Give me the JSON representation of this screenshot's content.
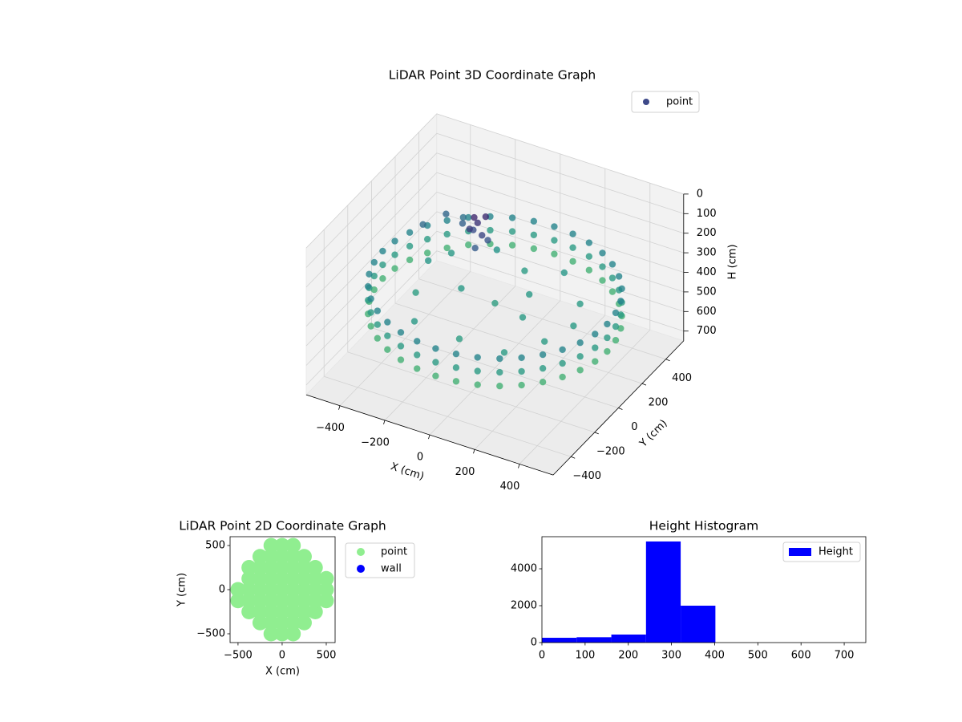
{
  "chart_data": [
    {
      "type": "scatter3d",
      "title": "LiDAR Point 3D Coordinate Graph",
      "xlabel": "X (cm)",
      "ylabel": "Y (cm)",
      "zlabel": "H (cm)",
      "xlim": [
        -550,
        550
      ],
      "ylim": [
        -550,
        550
      ],
      "zlim": [
        0,
        750
      ],
      "z_inverted": true,
      "xticks": [
        {
          "value": -400,
          "label": "−400"
        },
        {
          "value": -200,
          "label": "−200"
        },
        0,
        200,
        400
      ],
      "yticks": [
        {
          "value": -400,
          "label": "−400"
        },
        {
          "value": -200,
          "label": "−200"
        },
        0,
        200,
        400
      ],
      "zticks": [
        0,
        100,
        200,
        300,
        400,
        500,
        600,
        700
      ],
      "grid": true,
      "legend": "upper right",
      "colormap": [
        "#440154",
        "#3b528b",
        "#21918c",
        "#5ec962",
        "#fde725"
      ],
      "series": [
        {
          "name": "point",
          "color": "#3e4989",
          "x": [
            500,
            492,
            470,
            433,
            383,
            321,
            250,
            171,
            87,
            0,
            -87,
            -171,
            -250,
            -321,
            -383,
            -433,
            -470,
            -492,
            -500,
            -492,
            -470,
            -433,
            -383,
            -321,
            -250,
            -171,
            -87,
            0,
            87,
            171,
            250,
            321,
            383,
            433,
            470,
            492,
            500,
            492,
            470,
            433,
            383,
            321,
            250,
            171,
            87,
            0,
            -87,
            -171,
            -250,
            -321,
            -383,
            -433,
            -470,
            -492,
            -500,
            -492,
            -470,
            -433,
            -383,
            -321,
            -250,
            -171,
            -87,
            0,
            87,
            171,
            250,
            321,
            383,
            433,
            470,
            492,
            500,
            492,
            470,
            433,
            383,
            321,
            250,
            171,
            87,
            0,
            -87,
            -171,
            -250,
            -321,
            -383,
            -433,
            -470,
            -492,
            -500,
            -492,
            -470,
            -433,
            -383,
            -321,
            -250,
            -171,
            -87,
            0,
            87,
            171,
            250,
            321,
            383,
            433,
            470,
            492,
            -300,
            -150,
            0,
            150,
            300,
            -300,
            -150,
            0,
            150,
            300,
            -200,
            0,
            200,
            -350,
            100,
            350,
            -130,
            -100,
            -160,
            -110,
            -150,
            -90,
            -140,
            -120,
            -350,
            -300,
            -400,
            -250
          ],
          "y": [
            0,
            87,
            171,
            250,
            321,
            383,
            433,
            470,
            492,
            500,
            492,
            470,
            433,
            383,
            321,
            250,
            171,
            87,
            0,
            -87,
            -171,
            -250,
            -321,
            -383,
            -433,
            -470,
            -492,
            -500,
            -492,
            -470,
            -433,
            -383,
            -321,
            -250,
            -171,
            -87,
            0,
            87,
            171,
            250,
            321,
            383,
            433,
            470,
            492,
            500,
            492,
            470,
            433,
            383,
            321,
            250,
            171,
            87,
            0,
            -87,
            -171,
            -250,
            -321,
            -383,
            -433,
            -470,
            -492,
            -500,
            -492,
            -470,
            -433,
            -383,
            -321,
            -250,
            -171,
            -87,
            0,
            87,
            171,
            250,
            321,
            383,
            433,
            470,
            492,
            500,
            492,
            470,
            433,
            383,
            321,
            250,
            171,
            87,
            0,
            -87,
            -171,
            -250,
            -321,
            -383,
            -433,
            -470,
            -492,
            -500,
            -492,
            -470,
            -433,
            -383,
            -321,
            -250,
            -171,
            -87,
            200,
            300,
            250,
            300,
            150,
            -100,
            0,
            0,
            -50,
            -150,
            -300,
            -300,
            -300,
            100,
            100,
            0,
            100,
            80,
            120,
            130,
            70,
            110,
            90,
            60,
            250,
            300,
            150,
            200
          ],
          "z": [
            340,
            340,
            340,
            340,
            340,
            340,
            340,
            340,
            340,
            340,
            340,
            340,
            340,
            340,
            340,
            340,
            340,
            340,
            340,
            340,
            340,
            340,
            340,
            340,
            340,
            340,
            340,
            340,
            340,
            340,
            340,
            340,
            340,
            340,
            340,
            340,
            410,
            410,
            410,
            410,
            410,
            410,
            410,
            410,
            410,
            410,
            410,
            410,
            410,
            410,
            410,
            410,
            410,
            410,
            410,
            410,
            410,
            410,
            410,
            410,
            410,
            410,
            410,
            410,
            410,
            410,
            410,
            410,
            410,
            410,
            410,
            410,
            480,
            480,
            480,
            480,
            480,
            480,
            480,
            480,
            480,
            480,
            480,
            480,
            480,
            480,
            480,
            480,
            480,
            480,
            480,
            480,
            480,
            480,
            480,
            480,
            480,
            480,
            480,
            480,
            480,
            480,
            480,
            480,
            480,
            480,
            480,
            480,
            400,
            390,
            410,
            395,
            405,
            415,
            400,
            420,
            405,
            410,
            400,
            415,
            410,
            395,
            400,
            405,
            120,
            160,
            180,
            100,
            140,
            200,
            90,
            220,
            250,
            280,
            260,
            230
          ]
        }
      ]
    },
    {
      "type": "scatter",
      "title": "LiDAR Point 2D Coordinate Graph",
      "xlabel": "X (cm)",
      "ylabel": "Y (cm)",
      "xlim": [
        -590,
        600
      ],
      "ylim": [
        -600,
        600
      ],
      "xticks": [
        {
          "value": -500,
          "label": "−500"
        },
        0,
        500
      ],
      "yticks": [
        {
          "value": -500,
          "label": "−500"
        },
        0,
        500
      ],
      "legend": "outside upper right",
      "series": [
        {
          "name": "point",
          "color": "#90ee90",
          "x": [
            -500,
            -500,
            -375,
            -375,
            -375,
            -375,
            -375,
            -250,
            -250,
            -250,
            -250,
            -250,
            -250,
            -250,
            -125,
            -125,
            -125,
            -125,
            -125,
            -125,
            -125,
            -125,
            -125,
            0,
            0,
            0,
            0,
            0,
            0,
            0,
            0,
            0,
            125,
            125,
            125,
            125,
            125,
            125,
            125,
            125,
            125,
            250,
            250,
            250,
            250,
            250,
            250,
            250,
            375,
            375,
            375,
            375,
            375,
            500,
            500,
            500
          ],
          "y": [
            -125,
            0,
            -250,
            -125,
            0,
            125,
            250,
            -375,
            -250,
            -125,
            0,
            125,
            250,
            375,
            -500,
            -375,
            -250,
            -125,
            0,
            125,
            250,
            375,
            500,
            -500,
            -375,
            -250,
            -125,
            0,
            125,
            250,
            375,
            500,
            -500,
            -375,
            -250,
            -125,
            0,
            125,
            250,
            375,
            500,
            -375,
            -250,
            -125,
            0,
            125,
            250,
            375,
            -250,
            -125,
            0,
            125,
            250,
            -125,
            0,
            125
          ]
        },
        {
          "name": "wall",
          "color": "#0000ff",
          "x": [],
          "y": []
        }
      ]
    },
    {
      "type": "histogram",
      "title": "Height Histogram",
      "name": "Height",
      "color": "#0000ff",
      "bins": [
        0,
        80.3,
        160.7,
        241,
        321.3,
        401.7,
        482,
        562.3,
        642.7,
        723
      ],
      "values": [
        260,
        290,
        435,
        5480,
        2000,
        0,
        0,
        0,
        0
      ],
      "xlim": [
        0,
        750
      ],
      "ylim": [
        0,
        5740
      ],
      "xticks": [
        0,
        100,
        200,
        300,
        400,
        500,
        600,
        700
      ],
      "yticks": [
        0,
        2000,
        4000
      ],
      "legend": "upper right"
    }
  ]
}
